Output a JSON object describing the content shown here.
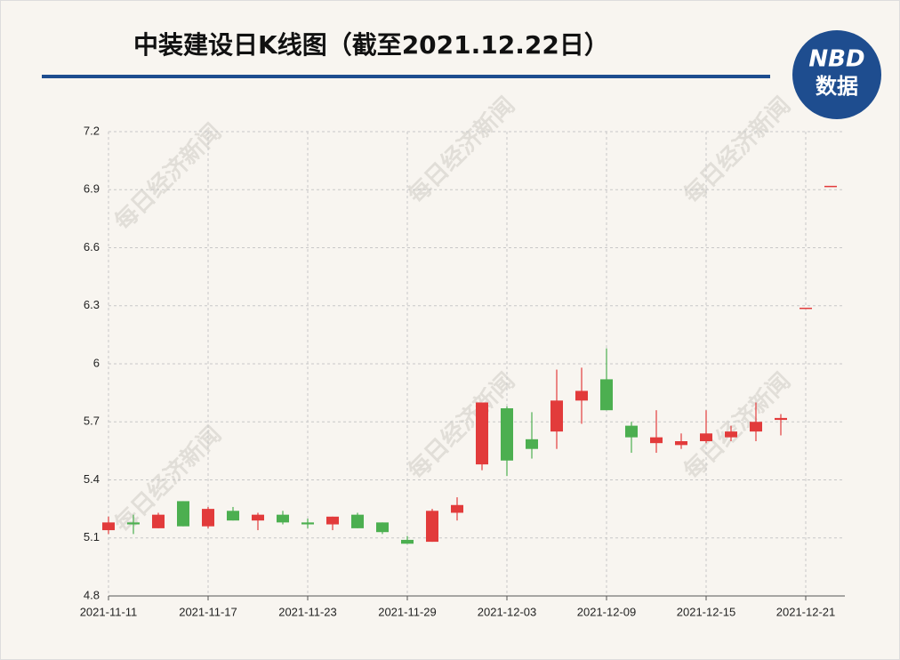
{
  "chart_data": {
    "type": "candlestick",
    "title": "中装建设日K线图（截至2021.12.22日）",
    "logo": [
      "NBD",
      "数据"
    ],
    "watermark": "每日经济新闻",
    "categories": [
      "2021-11-11",
      null,
      null,
      null,
      "2021-11-17",
      null,
      null,
      null,
      "2021-11-23",
      null,
      null,
      null,
      "2021-11-29",
      null,
      null,
      null,
      "2021-12-03",
      null,
      null,
      null,
      "2021-12-09",
      null,
      null,
      null,
      "2021-12-15",
      null,
      null,
      null,
      "2021-12-21",
      null
    ],
    "open": [
      5.14,
      5.18,
      5.15,
      5.29,
      5.16,
      5.24,
      5.19,
      5.22,
      5.18,
      5.17,
      5.22,
      5.18,
      5.09,
      5.08,
      5.23,
      5.48,
      5.77,
      5.61,
      5.65,
      5.81,
      5.92,
      5.68,
      5.59,
      5.58,
      5.6,
      5.62,
      5.65,
      5.71,
      6.29,
      6.92
    ],
    "high": [
      5.21,
      5.22,
      5.23,
      5.29,
      5.26,
      5.26,
      5.23,
      5.24,
      5.2,
      5.21,
      5.23,
      5.18,
      5.11,
      5.25,
      5.31,
      5.8,
      5.78,
      5.75,
      5.97,
      5.98,
      6.08,
      5.7,
      5.76,
      5.64,
      5.76,
      5.68,
      5.8,
      5.74,
      6.29,
      6.92
    ],
    "low": [
      5.12,
      5.12,
      5.15,
      5.16,
      5.15,
      5.19,
      5.14,
      5.17,
      5.15,
      5.14,
      5.15,
      5.12,
      5.07,
      5.08,
      5.19,
      5.45,
      5.42,
      5.51,
      5.56,
      5.69,
      5.76,
      5.54,
      5.54,
      5.56,
      5.59,
      5.6,
      5.6,
      5.63,
      6.29,
      6.92
    ],
    "close": [
      5.18,
      5.17,
      5.22,
      5.16,
      5.25,
      5.19,
      5.22,
      5.18,
      5.17,
      5.21,
      5.15,
      5.13,
      5.07,
      5.24,
      5.27,
      5.8,
      5.5,
      5.56,
      5.81,
      5.86,
      5.76,
      5.62,
      5.62,
      5.6,
      5.64,
      5.65,
      5.7,
      5.72,
      6.29,
      6.92
    ],
    "up_color": "#e23b3b",
    "down_color": "#4caf50",
    "ylim": [
      4.8,
      7.2
    ],
    "yticks": [
      4.8,
      5.1,
      5.4,
      5.7,
      6,
      6.3,
      6.6,
      6.9,
      7.2
    ],
    "grid": true
  }
}
